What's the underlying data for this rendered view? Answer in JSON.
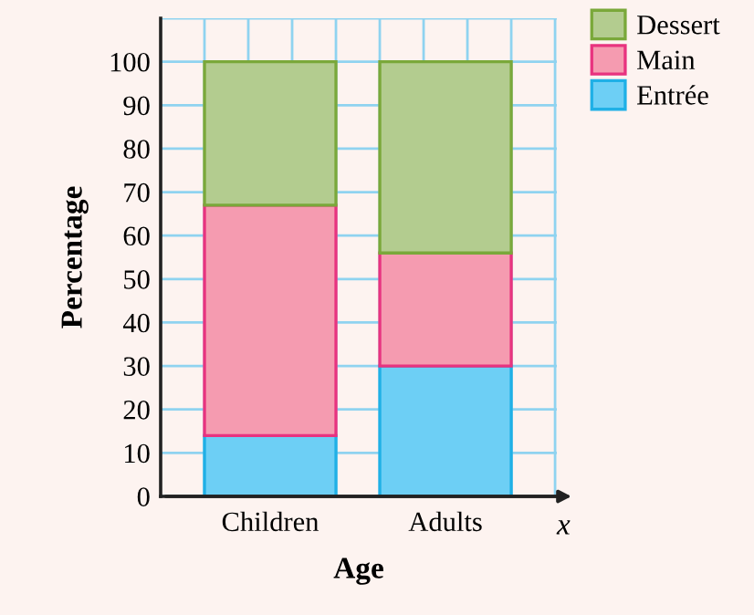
{
  "chart_data": {
    "type": "bar",
    "stacked": true,
    "xlabel": "Age",
    "ylabel": "Percentage",
    "categories": [
      "Children",
      "Adults"
    ],
    "series": [
      {
        "name": "Entrée",
        "color": "#6dcff5",
        "values": [
          14,
          30
        ]
      },
      {
        "name": "Main",
        "color": "#f59bb0",
        "values": [
          53,
          26
        ]
      },
      {
        "name": "Dessert",
        "color": "#b3cc8f",
        "values": [
          33,
          44
        ]
      }
    ],
    "ylim": [
      0,
      110
    ],
    "yticks": [
      0,
      10,
      20,
      30,
      40,
      50,
      60,
      70,
      80,
      90,
      100
    ],
    "grid": true,
    "legend": "top right",
    "annotations": [
      "x"
    ]
  }
}
